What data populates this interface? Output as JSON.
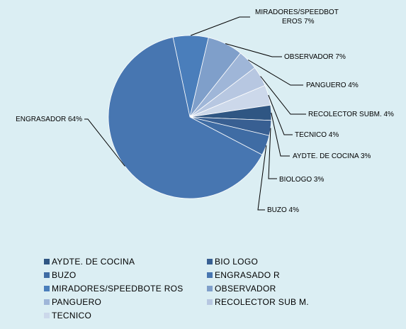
{
  "chart_data": {
    "type": "pie",
    "title": "",
    "slices": [
      {
        "name": "MIRADORES/SPEEDBOTEROS",
        "label": [
          "MIRADORES/SPEEDBOT",
          "EROS 7%"
        ],
        "value": 7,
        "color": "#4a7ebb"
      },
      {
        "name": "OBSERVADOR",
        "label": [
          "OBSERVADOR 7%"
        ],
        "value": 7,
        "color": "#7f9fca"
      },
      {
        "name": "PANGUERO",
        "label": [
          "PANGUERO 4%"
        ],
        "value": 4,
        "color": "#9fb6d8"
      },
      {
        "name": "RECOLECTOR SUBM.",
        "label": [
          "RECOLECTOR  SUBM. 4%"
        ],
        "value": 4,
        "color": "#b7c7e1"
      },
      {
        "name": "TECNICO",
        "label": [
          "TECNICO 4%"
        ],
        "value": 4,
        "color": "#ccd8ea"
      },
      {
        "name": "AYDTE. DE COCINA",
        "label": [
          "AYDTE. DE COCINA 3%"
        ],
        "value": 3,
        "color": "#2f5683"
      },
      {
        "name": "BIOLOGO",
        "label": [
          "BIOLOGO 3%"
        ],
        "value": 3,
        "color": "#385f92"
      },
      {
        "name": "BUZO",
        "label": [
          "BUZO 4%"
        ],
        "value": 4,
        "color": "#3f6ca4"
      },
      {
        "name": "ENGRASADOR",
        "label": [
          "ENGRASADOR 64%"
        ],
        "value": 64,
        "color": "#4776b1"
      }
    ],
    "legend_position": "bottom",
    "legend": [
      {
        "label": "AYDTE. DE COCINA",
        "color": "#2f5683"
      },
      {
        "label": "BIO LOGO",
        "color": "#385f92"
      },
      {
        "label": "BUZO",
        "color": "#3f6ca4"
      },
      {
        "label": "ENGRASADO R",
        "color": "#4776b1"
      },
      {
        "label": "MIRADORES/SPEEDBOTE ROS",
        "color": "#4a7ebb"
      },
      {
        "label": "OBSERVADOR",
        "color": "#7f9fca"
      },
      {
        "label": "PANGUERO",
        "color": "#9fb6d8"
      },
      {
        "label": "RECOLECTOR SUB M.",
        "color": "#b7c7e1"
      },
      {
        "label": "TECNICO",
        "color": "#ccd8ea"
      }
    ]
  }
}
